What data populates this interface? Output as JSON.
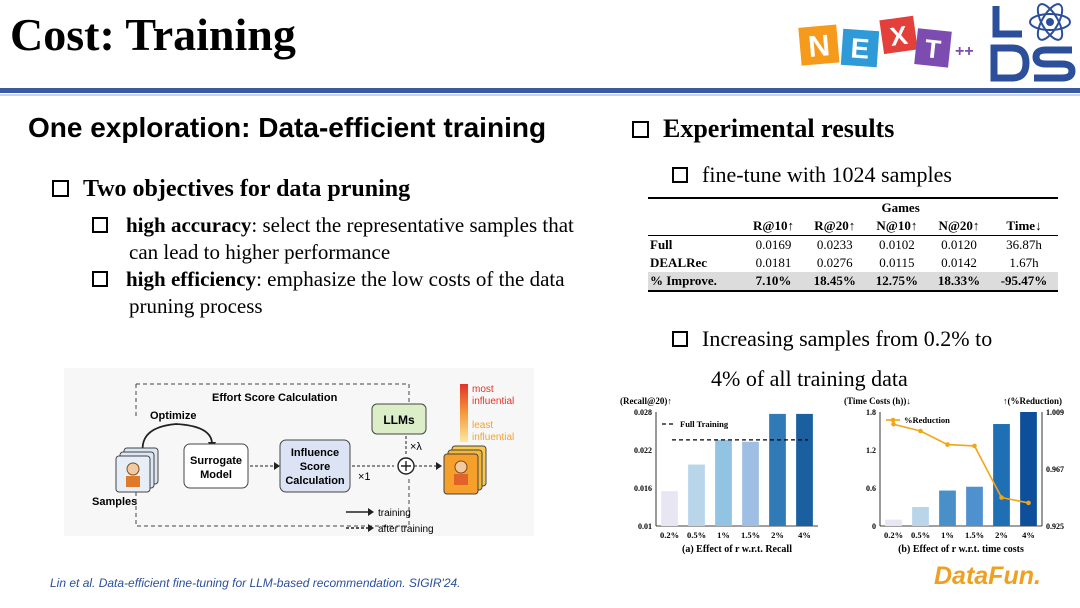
{
  "slide": {
    "title": "Cost: Training",
    "section_heading": "One exploration: Data-efficient training",
    "logo_text": {
      "n": "N",
      "e": "E",
      "x": "X",
      "t": "T",
      "plus": "++"
    },
    "objectives": {
      "title": "Two objectives for data pruning",
      "items": [
        {
          "bold": "high accuracy",
          "text": ": select the representative samples that",
          "cont": "can lead to higher performance"
        },
        {
          "bold": "high efficiency",
          "text": ": emphasize the low costs of the data",
          "cont": "pruning process"
        }
      ]
    },
    "experiments": {
      "title": "Experimental results",
      "finetune_label": "fine-tune with 1024 samples",
      "increasing_line1": "Increasing samples from 0.2% to",
      "increasing_line2": "4% of all training data"
    },
    "citation": "Lin et al. Data-efficient fine-tuning for LLM-based recommendation. SIGIR'24.",
    "brand": "DataFun."
  },
  "results_table": {
    "group_header": "Games",
    "columns": [
      "R@10↑",
      "R@20↑",
      "N@10↑",
      "N@20↑",
      "Time↓"
    ],
    "rows": [
      {
        "name": "Full",
        "values": [
          "0.0169",
          "0.0233",
          "0.0102",
          "0.0120",
          "36.87h"
        ]
      },
      {
        "name": "DEALRec",
        "values": [
          "0.0181",
          "0.0276",
          "0.0115",
          "0.0142",
          "1.67h"
        ]
      },
      {
        "name": "% Improve.",
        "values": [
          "7.10%",
          "18.45%",
          "12.75%",
          "18.33%",
          "-95.47%"
        ]
      }
    ]
  },
  "diagram": {
    "title": "Effort Score Calculation",
    "optimize": "Optimize",
    "samples": "Samples",
    "surrogate": [
      "Surrogate",
      "Model"
    ],
    "influence": [
      "Influence",
      "Score",
      "Calculation"
    ],
    "llms": "LLMs",
    "times_one": "×1",
    "times_lambda": "×λ",
    "legend_most": [
      "most",
      "influential"
    ],
    "legend_least": [
      "least",
      "influential"
    ],
    "legend_training": "training",
    "legend_after": "after training"
  },
  "chart_data": [
    {
      "type": "bar",
      "title": "(a) Effect of r w.r.t. Recall",
      "ylabel": "(Recall@20)↑",
      "categories": [
        "0.2%",
        "0.5%",
        "1%",
        "1.5%",
        "2%",
        "4%"
      ],
      "values": [
        0.0155,
        0.0197,
        0.0236,
        0.0233,
        0.0277,
        0.0277
      ],
      "reference_line": {
        "name": "Full Training",
        "value": 0.0236
      },
      "ylim": [
        0.01,
        0.028
      ],
      "yticks": [
        "0.01",
        "0.016",
        "0.022",
        "0.028"
      ],
      "colors": [
        "#e8e6f3",
        "#b8d5ea",
        "#92c3e2",
        "#9ebfe3",
        "#2f7ab7",
        "#1a5fa0"
      ]
    },
    {
      "type": "bar+line",
      "title": "(b) Effect of r w.r.t. time costs",
      "ylabel": "(Time Costs (h))↓",
      "y2label": "↑(%Reduction)",
      "categories": [
        "0.2%",
        "0.5%",
        "1%",
        "1.5%",
        "2%",
        "4%"
      ],
      "values": [
        0.1,
        0.3,
        0.56,
        0.62,
        1.61,
        1.8
      ],
      "line_name": "%Reduction",
      "line_values": [
        1.0,
        0.995,
        0.985,
        0.984,
        0.946,
        0.942
      ],
      "ylim": [
        0,
        1.8
      ],
      "yticks": [
        "0",
        "0.6",
        "1.2",
        "1.8"
      ],
      "y2lim": [
        0.925,
        1.009
      ],
      "y2ticks": [
        "0.925",
        "0.967",
        "1.009"
      ],
      "line_color": "#f2a516",
      "colors": [
        "#e8e6f3",
        "#b8d5ea",
        "#4a90c8",
        "#4f90cf",
        "#1f6fb4",
        "#0d4f9a"
      ]
    }
  ]
}
